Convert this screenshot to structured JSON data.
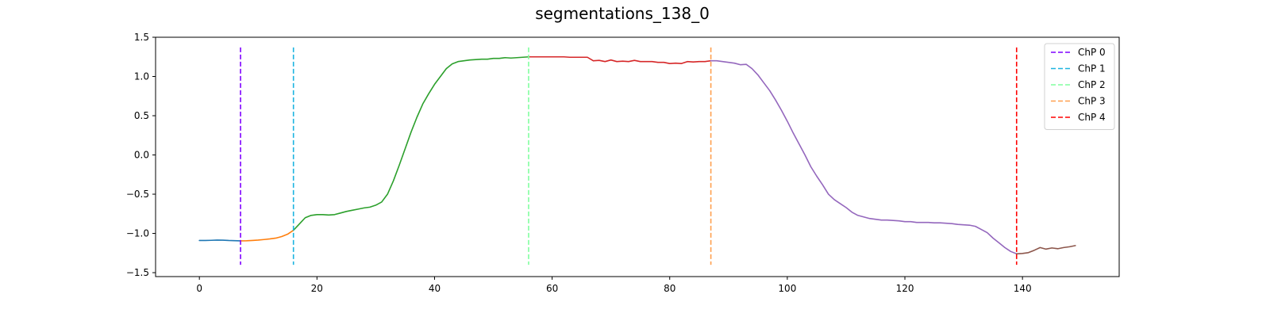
{
  "chart_data": {
    "type": "line",
    "title": "segmentations_138_0",
    "xlabel": "",
    "ylabel": "",
    "xlim": [
      -7.45,
      156.45
    ],
    "ylim": [
      -1.55,
      1.5
    ],
    "xticks": [
      0,
      20,
      40,
      60,
      80,
      100,
      120,
      140
    ],
    "yticks": [
      -1.5,
      -1.0,
      -0.5,
      0.0,
      0.5,
      1.0,
      1.5
    ],
    "xtick_labels": [
      "0",
      "20",
      "40",
      "60",
      "80",
      "100",
      "120",
      "140"
    ],
    "ytick_labels": [
      "−1.5",
      "−1.0",
      "−0.5",
      "0.0",
      "0.5",
      "1.0",
      "1.5"
    ],
    "grid": false,
    "legend_position": "upper right",
    "segments": [
      {
        "color": "#1f77b4",
        "x": [
          0,
          1,
          2,
          3,
          4,
          5,
          6,
          7
        ],
        "y": [
          -1.09,
          -1.09,
          -1.088,
          -1.085,
          -1.086,
          -1.09,
          -1.092,
          -1.095
        ]
      },
      {
        "color": "#ff7f0e",
        "x": [
          7,
          8,
          9,
          10,
          11,
          12,
          13,
          14,
          15,
          16
        ],
        "y": [
          -1.095,
          -1.094,
          -1.09,
          -1.085,
          -1.078,
          -1.07,
          -1.06,
          -1.04,
          -1.01,
          -0.96
        ]
      },
      {
        "color": "#2ca02c",
        "x": [
          16,
          17,
          18,
          19,
          20,
          21,
          22,
          23,
          24,
          25,
          26,
          27,
          28,
          29,
          30,
          31,
          32,
          33,
          34,
          35,
          36,
          37,
          38,
          39,
          40,
          41,
          42,
          43,
          44,
          45,
          46,
          47,
          48,
          49,
          50,
          51,
          52,
          53,
          54,
          55,
          56
        ],
        "y": [
          -0.96,
          -0.88,
          -0.8,
          -0.77,
          -0.76,
          -0.76,
          -0.765,
          -0.76,
          -0.74,
          -0.72,
          -0.705,
          -0.69,
          -0.675,
          -0.665,
          -0.64,
          -0.6,
          -0.5,
          -0.33,
          -0.13,
          0.08,
          0.29,
          0.48,
          0.65,
          0.78,
          0.9,
          1.0,
          1.1,
          1.16,
          1.19,
          1.2,
          1.21,
          1.215,
          1.22,
          1.22,
          1.23,
          1.23,
          1.24,
          1.235,
          1.24,
          1.245,
          1.25
        ]
      },
      {
        "color": "#d62728",
        "x": [
          56,
          57,
          58,
          59,
          60,
          61,
          62,
          63,
          64,
          65,
          66,
          67,
          68,
          69,
          70,
          71,
          72,
          73,
          74,
          75,
          76,
          77,
          78,
          79,
          80,
          81,
          82,
          83,
          84,
          85,
          86,
          87
        ],
        "y": [
          1.25,
          1.25,
          1.25,
          1.25,
          1.25,
          1.25,
          1.25,
          1.245,
          1.245,
          1.245,
          1.245,
          1.2,
          1.205,
          1.19,
          1.21,
          1.19,
          1.195,
          1.19,
          1.205,
          1.19,
          1.19,
          1.19,
          1.18,
          1.18,
          1.165,
          1.17,
          1.165,
          1.19,
          1.185,
          1.19,
          1.19,
          1.2
        ]
      },
      {
        "color": "#9467bd",
        "x": [
          87,
          88,
          89,
          90,
          91,
          92,
          93,
          94,
          95,
          96,
          97,
          98,
          99,
          100,
          101,
          102,
          103,
          104,
          105,
          106,
          107,
          108,
          109,
          110,
          111,
          112,
          113,
          114,
          115,
          116,
          117,
          118,
          119,
          120,
          121,
          122,
          123,
          124,
          125,
          126,
          127,
          128,
          129,
          130,
          131,
          132,
          133,
          134,
          135,
          136,
          137,
          138,
          139
        ],
        "y": [
          1.2,
          1.2,
          1.19,
          1.18,
          1.17,
          1.15,
          1.155,
          1.1,
          1.02,
          0.92,
          0.82,
          0.7,
          0.57,
          0.43,
          0.28,
          0.14,
          0.0,
          -0.15,
          -0.27,
          -0.38,
          -0.5,
          -0.57,
          -0.62,
          -0.67,
          -0.73,
          -0.77,
          -0.79,
          -0.81,
          -0.82,
          -0.83,
          -0.83,
          -0.835,
          -0.84,
          -0.85,
          -0.85,
          -0.86,
          -0.86,
          -0.86,
          -0.865,
          -0.865,
          -0.87,
          -0.875,
          -0.885,
          -0.89,
          -0.895,
          -0.91,
          -0.95,
          -0.99,
          -1.06,
          -1.12,
          -1.18,
          -1.23,
          -1.26
        ]
      },
      {
        "color": "#8c564b",
        "x": [
          139,
          140,
          141,
          142,
          143,
          144,
          145,
          146,
          147,
          148,
          149
        ],
        "y": [
          -1.26,
          -1.255,
          -1.245,
          -1.215,
          -1.18,
          -1.2,
          -1.185,
          -1.195,
          -1.18,
          -1.17,
          -1.155
        ]
      }
    ],
    "changepoints": [
      {
        "name": "ChP 0",
        "x": 7,
        "color": "#7f00ff"
      },
      {
        "name": "ChP 1",
        "x": 16,
        "color": "#1cb4e0"
      },
      {
        "name": "ChP 2",
        "x": 56,
        "color": "#80ff9f"
      },
      {
        "name": "ChP 3",
        "x": 87,
        "color": "#ffa04f"
      },
      {
        "name": "ChP 4",
        "x": 139,
        "color": "#ff0000"
      }
    ],
    "changepoint_span": [
      -1.4,
      1.37
    ]
  }
}
